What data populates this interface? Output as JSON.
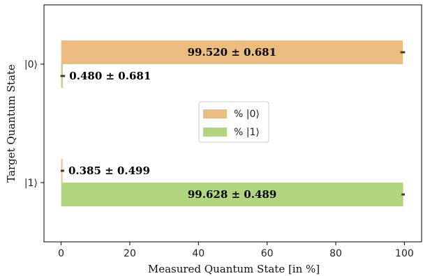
{
  "chart_data": {
    "type": "bar",
    "orientation": "horizontal",
    "title": "",
    "xlabel": "Measured Quantum State [in %]",
    "ylabel": "Target Quantum State",
    "categories": [
      "|0⟩",
      "|1⟩"
    ],
    "xlim": [
      -5,
      105
    ],
    "xticks": [
      0,
      20,
      40,
      60,
      80,
      100
    ],
    "grid": false,
    "legend_position": "center",
    "series": [
      {
        "name": "% |0⟩",
        "color": "#ebbc80",
        "values": [
          99.52,
          0.385
        ],
        "errors": [
          0.681,
          0.499
        ],
        "labels": [
          "99.520 ± 0.681",
          "0.385 ± 0.499"
        ]
      },
      {
        "name": "% |1⟩",
        "color": "#b2d580",
        "values": [
          0.48,
          99.628
        ],
        "errors": [
          0.681,
          0.489
        ],
        "labels": [
          "0.480 ± 0.681",
          "99.628 ± 0.489"
        ]
      }
    ]
  }
}
